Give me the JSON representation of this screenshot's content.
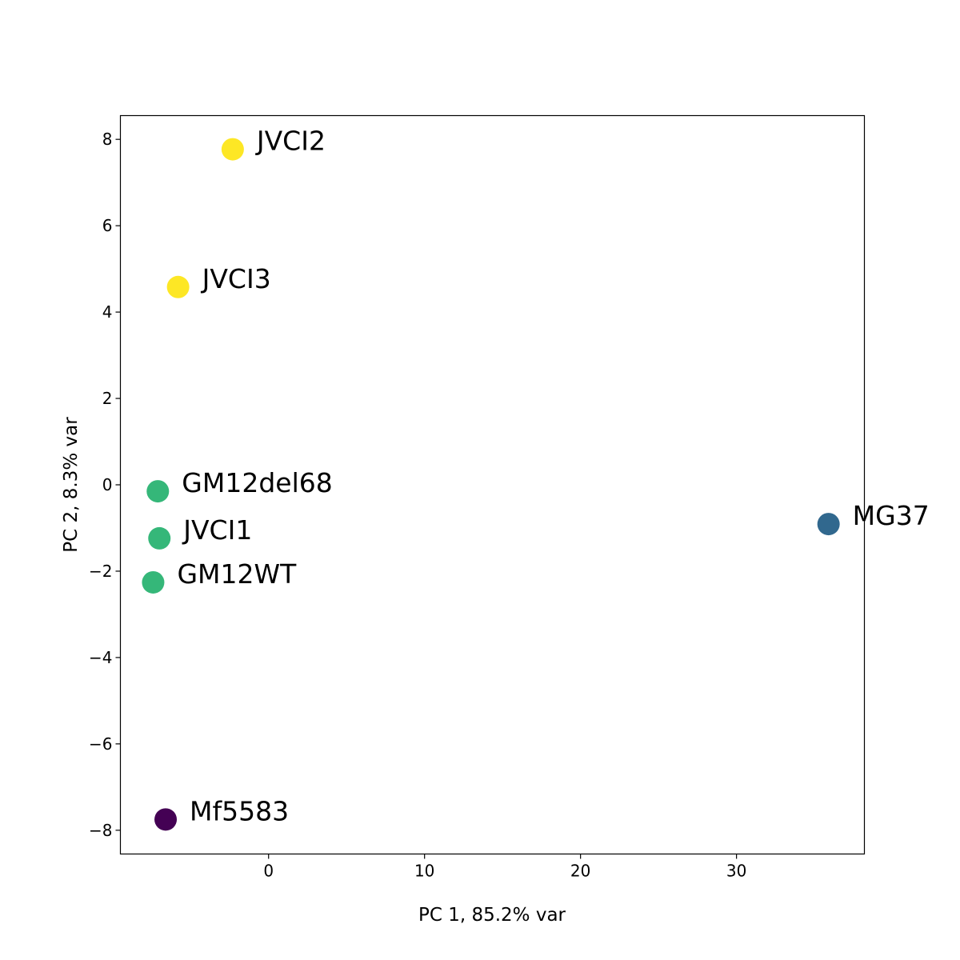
{
  "chart_data": {
    "type": "scatter",
    "title": "",
    "xlabel": "PC 1, 85.2% var",
    "ylabel": "PC 2, 8.3% var",
    "xlim": [
      -9.5,
      38.2
    ],
    "ylim": [
      -8.55,
      8.55
    ],
    "x_ticks": [
      0,
      10,
      20,
      30
    ],
    "x_tick_labels": [
      "0",
      "10",
      "20",
      "30"
    ],
    "y_ticks": [
      8,
      6,
      4,
      2,
      0,
      -2,
      -4,
      -6,
      -8
    ],
    "y_tick_labels": [
      "8",
      "6",
      "4",
      "2",
      "0",
      "−2",
      "−4",
      "−6",
      "−8"
    ],
    "grid": false,
    "legend": "none",
    "points": [
      {
        "label": "JVCI2",
        "x": -2.3,
        "y": 7.77,
        "color": "#fde725"
      },
      {
        "label": "JVCI3",
        "x": -5.8,
        "y": 4.58,
        "color": "#fde725"
      },
      {
        "label": "GM12del68",
        "x": -7.1,
        "y": -0.15,
        "color": "#35b779"
      },
      {
        "label": "JVCI1",
        "x": -7.0,
        "y": -1.24,
        "color": "#35b779"
      },
      {
        "label": "GM12WT",
        "x": -7.4,
        "y": -2.26,
        "color": "#35b779"
      },
      {
        "label": "MG37",
        "x": 35.9,
        "y": -0.91,
        "color": "#31688e"
      },
      {
        "label": "Mf5583",
        "x": -6.6,
        "y": -7.75,
        "color": "#440154"
      }
    ]
  }
}
